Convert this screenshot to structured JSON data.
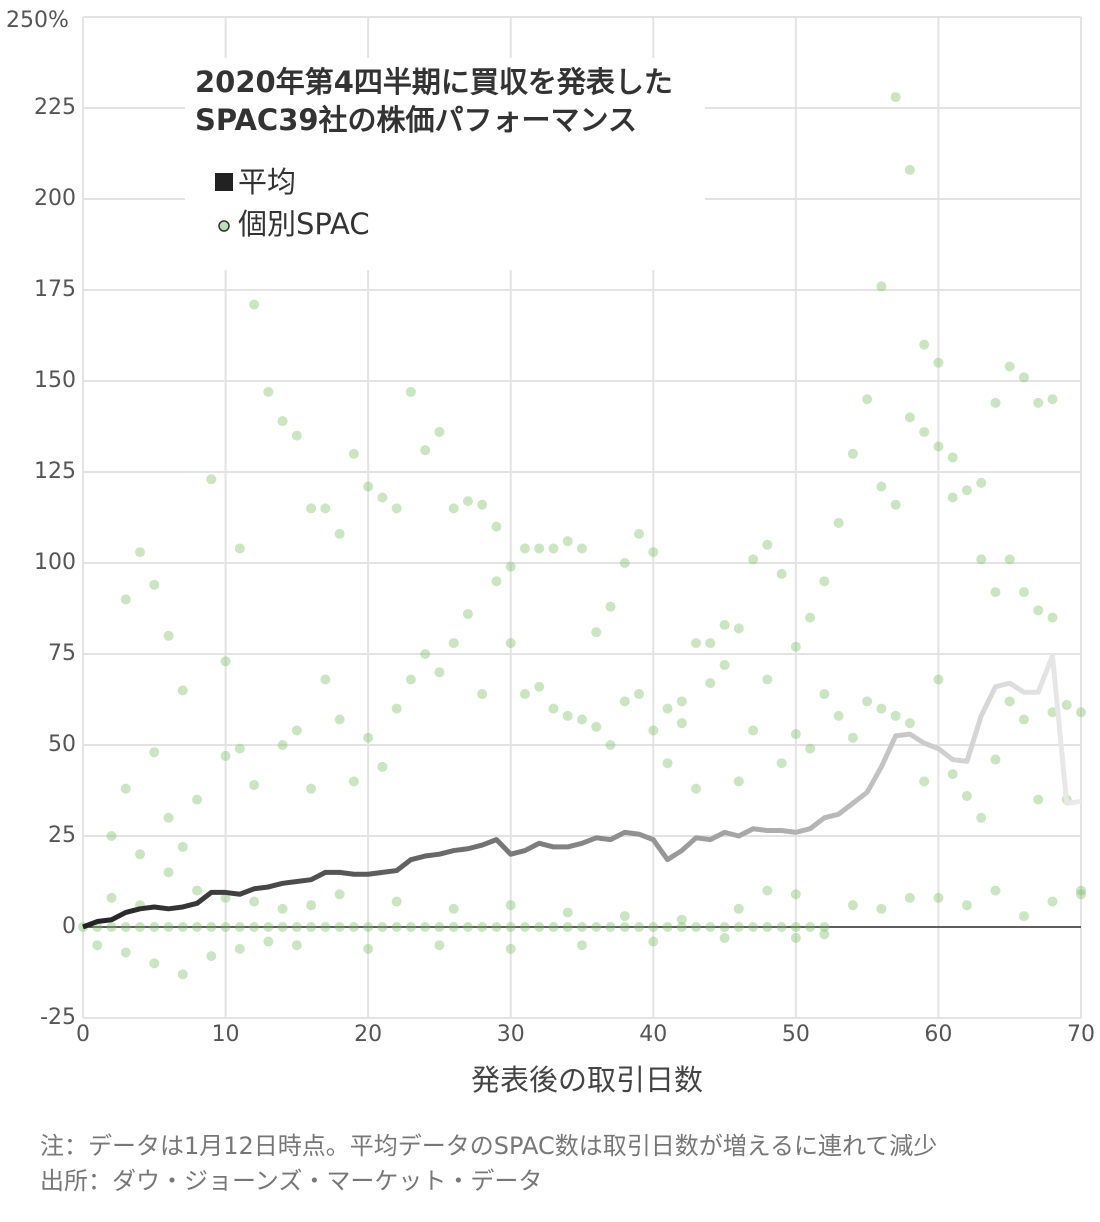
{
  "chart_data": {
    "type": "scatter",
    "title": "2020年第4四半期に買収を発表した\nSPAC39社の株価パフォーマンス",
    "xlabel": "発表後の取引日数",
    "notes": [
      "注：データは1月12日時点。平均データのSPAC数は取引日数が増えるに連れて減少",
      "出所：ダウ・ジョーンズ・マーケット・データ"
    ],
    "xlim": [
      0,
      70
    ],
    "xticks": [
      0,
      10,
      20,
      30,
      40,
      50,
      60,
      70
    ],
    "ylim": [
      -25,
      250
    ],
    "yticks": [
      -25,
      0,
      25,
      50,
      75,
      100,
      125,
      150,
      175,
      200,
      225,
      {
        "value": 250,
        "label": "250%"
      }
    ],
    "grid": true,
    "series": [
      {
        "name": "平均",
        "type": "line",
        "colors": [
          "#222222",
          "#ebebeb"
        ],
        "x": [
          0,
          1,
          2,
          3,
          4,
          5,
          6,
          7,
          8,
          9,
          10,
          11,
          12,
          13,
          14,
          15,
          16,
          17,
          18,
          19,
          20,
          21,
          22,
          23,
          24,
          25,
          26,
          27,
          28,
          29,
          30,
          31,
          32,
          33,
          34,
          35,
          36,
          37,
          38,
          39,
          40,
          41,
          42,
          43,
          44,
          45,
          46,
          47,
          48,
          49,
          50,
          51,
          52,
          53,
          54,
          55,
          56,
          57,
          58,
          59,
          60,
          61,
          62,
          63,
          64,
          65,
          66,
          67,
          68,
          69,
          70
        ],
        "values": [
          0,
          1.5,
          2,
          4,
          5,
          5.5,
          5,
          5.5,
          6.5,
          9.5,
          9.5,
          9,
          10.5,
          11,
          12,
          12.5,
          13,
          15,
          15,
          14.5,
          14.5,
          15,
          15.5,
          18.5,
          19.5,
          20,
          21,
          21.5,
          22.5,
          24,
          20,
          21,
          23,
          22,
          22,
          23,
          24.5,
          24,
          26,
          25.5,
          24,
          18.5,
          21,
          24.5,
          24,
          26,
          25,
          27,
          26.5,
          26.5,
          26,
          27,
          30,
          31,
          34,
          37,
          44,
          52.5,
          53,
          50.5,
          49,
          46,
          45.5,
          58,
          66,
          67,
          64.5,
          64.5,
          74.5,
          34,
          34.5
        ]
      },
      {
        "name": "個別SPAC",
        "type": "scatter",
        "color": "#7dbf6a",
        "x": [
          3,
          4,
          5,
          6,
          7,
          9,
          10,
          11,
          12,
          13,
          14,
          15,
          16,
          17,
          18,
          19,
          20,
          21,
          22,
          23,
          24,
          25,
          26,
          27,
          28,
          29,
          30,
          31,
          32,
          33,
          34,
          35,
          36,
          37,
          38,
          39,
          40,
          41,
          42,
          43,
          44,
          45,
          46,
          47,
          48,
          49,
          50,
          51,
          52,
          53,
          54,
          55,
          56,
          57,
          58,
          59,
          60,
          61,
          62,
          63,
          64,
          65,
          66,
          67,
          68,
          69,
          70,
          56,
          57,
          58,
          59,
          60,
          61,
          64,
          65,
          66,
          67,
          68,
          63,
          2,
          3,
          4,
          5,
          6,
          7,
          8,
          10,
          11,
          12,
          14,
          15,
          16,
          17,
          18,
          19,
          20,
          21,
          22,
          23,
          24,
          25,
          26,
          27,
          28,
          29,
          30,
          31,
          32,
          33,
          34,
          35,
          36,
          37,
          38,
          39,
          40,
          41,
          42,
          43,
          44,
          45,
          46,
          47,
          48,
          49,
          50,
          51,
          52,
          53,
          54,
          55,
          56,
          57,
          58,
          59,
          60,
          61,
          62,
          63,
          64,
          65,
          66,
          67,
          68,
          69,
          70,
          1,
          3,
          5,
          7,
          9,
          11,
          13,
          15,
          20,
          25,
          30,
          35,
          40,
          45,
          50,
          52,
          2,
          4,
          6,
          8,
          10,
          12,
          14,
          16,
          18,
          22,
          26,
          30,
          34,
          38,
          42,
          46,
          48,
          50,
          54,
          56,
          58,
          60,
          62,
          64,
          66,
          68,
          70,
          0,
          1,
          2,
          3,
          4,
          5,
          6,
          7,
          8,
          9,
          10,
          11,
          12,
          13,
          14,
          15,
          16,
          17,
          18,
          19,
          20,
          21,
          22,
          23,
          24,
          25,
          26,
          27,
          28,
          29,
          30,
          31,
          32,
          33,
          34,
          35,
          36,
          37,
          38,
          39,
          40,
          41,
          42,
          43,
          44,
          45,
          46,
          47,
          48,
          49,
          50,
          51,
          52
        ],
        "values": [
          90,
          103,
          94,
          80,
          65,
          123,
          73,
          104,
          171,
          147,
          139,
          135,
          115,
          115,
          108,
          130,
          121,
          118,
          115,
          147,
          131,
          136,
          115,
          117,
          116,
          110,
          99,
          104,
          104,
          104,
          106,
          104,
          81,
          88,
          100,
          108,
          103,
          60,
          62,
          78,
          78,
          83,
          82,
          101,
          105,
          97,
          77,
          85,
          95,
          111,
          130,
          145,
          176,
          228,
          208,
          160,
          155,
          129,
          120,
          122,
          144,
          154,
          151,
          144,
          145,
          61,
          59,
          121,
          116,
          140,
          136,
          132,
          118,
          92,
          101,
          92,
          87,
          85,
          101,
          25,
          38,
          20,
          48,
          30,
          22,
          35,
          47,
          49,
          39,
          50,
          54,
          38,
          68,
          57,
          40,
          52,
          44,
          60,
          68,
          75,
          70,
          78,
          86,
          64,
          95,
          78,
          64,
          66,
          60,
          58,
          57,
          55,
          50,
          62,
          64,
          54,
          45,
          56,
          38,
          67,
          72,
          40,
          54,
          68,
          45,
          53,
          49,
          64,
          58,
          52,
          62,
          60,
          58,
          56,
          40,
          68,
          42,
          36,
          30,
          46,
          62,
          57,
          35,
          59,
          35,
          10,
          -5,
          -7,
          -10,
          -13,
          -8,
          -6,
          -4,
          -5,
          -6,
          -5,
          -6,
          -5,
          -4,
          -3,
          -3,
          -2,
          8,
          6,
          15,
          10,
          8,
          7,
          5,
          6,
          9,
          7,
          5,
          6,
          4,
          3,
          2,
          5,
          10,
          9,
          6,
          5,
          8,
          8,
          6,
          10,
          3,
          7,
          9,
          0,
          0,
          0,
          0,
          0,
          0,
          0,
          0,
          0,
          0,
          0,
          0,
          0,
          0,
          0,
          0,
          0,
          0,
          0,
          0,
          0,
          0,
          0,
          0,
          0,
          0,
          0,
          0,
          0,
          0,
          0,
          0,
          0,
          0,
          0,
          0,
          0,
          0,
          0,
          0,
          0,
          0,
          0,
          0,
          0,
          0,
          0,
          0,
          0,
          0,
          0,
          0,
          0
        ]
      }
    ]
  }
}
